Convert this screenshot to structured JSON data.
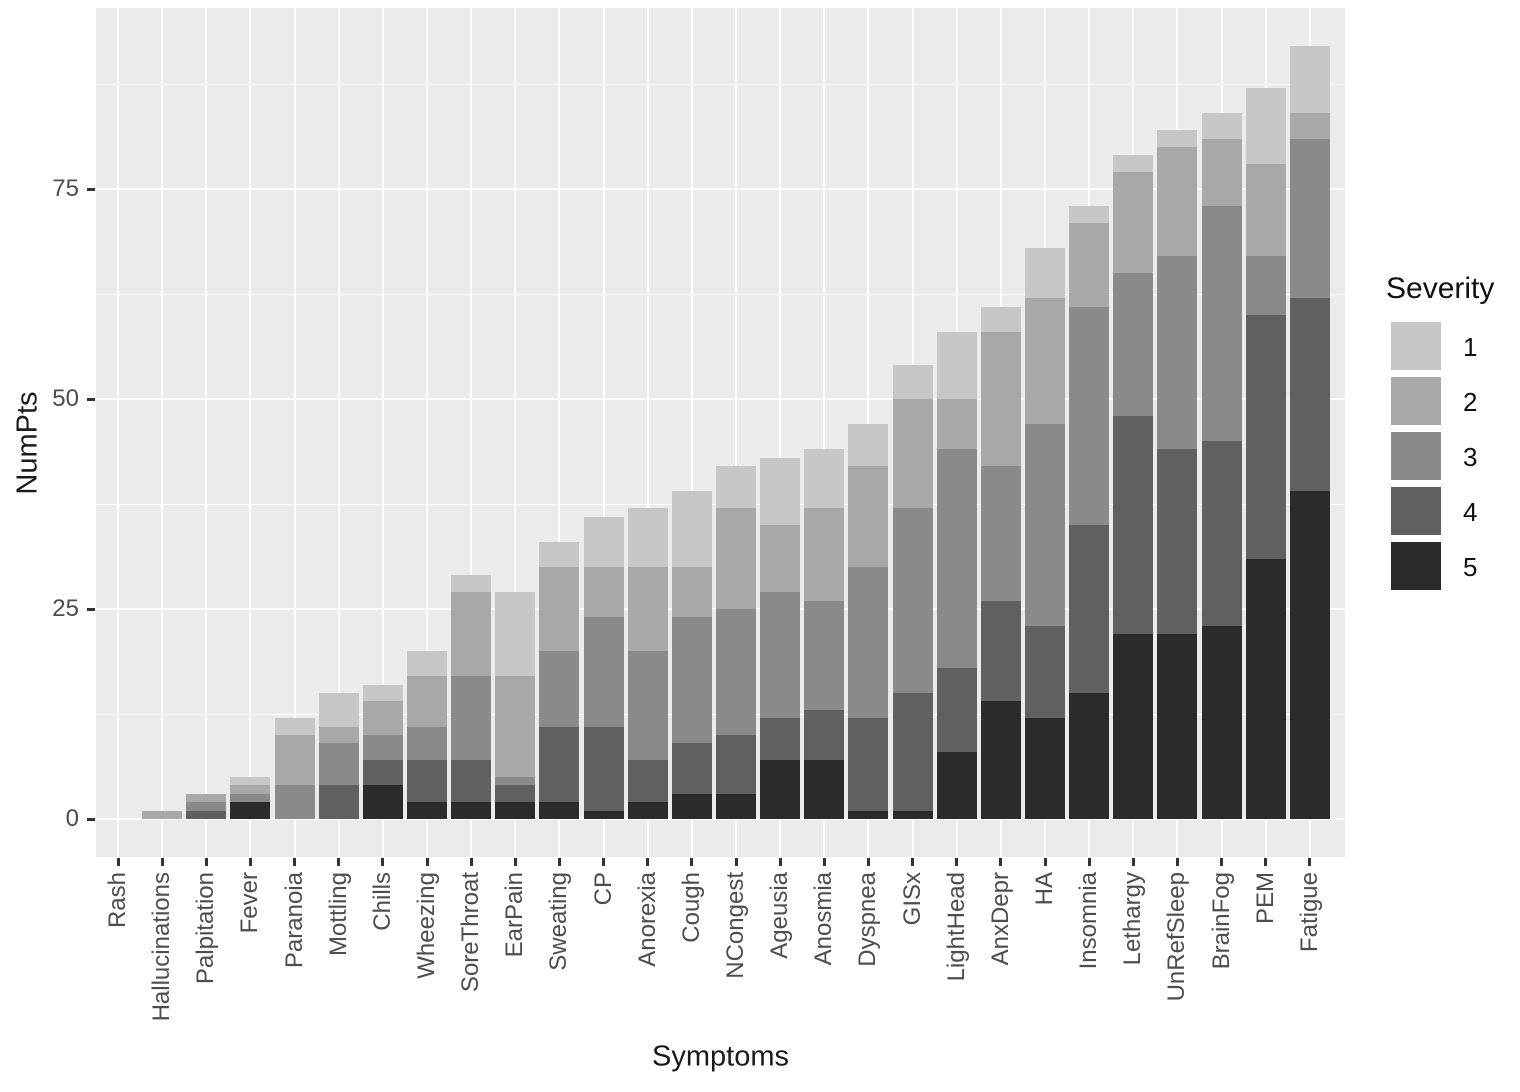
{
  "figure": {
    "y_axis": {
      "title": "NumPts",
      "tick_labels": [
        "0",
        "25",
        "50",
        "75"
      ]
    },
    "x_axis": {
      "title": "Symptoms"
    },
    "legend": {
      "title": "Severity",
      "labels": [
        "1",
        "2",
        "3",
        "4",
        "5"
      ]
    },
    "colors": {
      "severity_fills": [
        "#c6c6c6",
        "#a8a8a8",
        "#8a8a8a",
        "#606060",
        "#2b2b2b"
      ],
      "panel_background": "#ebebeb",
      "gridline": "#ffffff",
      "tick_mark": "#333333",
      "tick_text": "#4d4d4d",
      "title_text": "#1a1a1a"
    }
  },
  "chart_data": {
    "type": "bar",
    "stacked": true,
    "title": "",
    "xlabel": "Symptoms",
    "ylabel": "NumPts",
    "ylim": [
      0,
      96
    ],
    "yticks": [
      0,
      25,
      50,
      75
    ],
    "grid": true,
    "legend_position": "right",
    "legend_title": "Severity",
    "categories": [
      "Rash",
      "Hallucinations",
      "Palpitation",
      "Fever",
      "Paranoia",
      "Mottling",
      "Chills",
      "Wheezing",
      "SoreThroat",
      "EarPain",
      "Sweating",
      "CP",
      "Anorexia",
      "Cough",
      "NCongest",
      "Ageusia",
      "Anosmia",
      "Dyspnea",
      "GISx",
      "LightHead",
      "AnxDepr",
      "HA",
      "Insomnia",
      "Lethargy",
      "UnRefSleep",
      "BrainFog",
      "PEM",
      "Fatigue"
    ],
    "series": [
      {
        "name": "1",
        "values": [
          0,
          0,
          0,
          1,
          2,
          4,
          2,
          3,
          2,
          10,
          3,
          6,
          7,
          9,
          5,
          8,
          7,
          5,
          4,
          8,
          3,
          6,
          2,
          2,
          2,
          3,
          9,
          8
        ]
      },
      {
        "name": "2",
        "values": [
          0,
          1,
          1,
          1,
          6,
          2,
          4,
          6,
          10,
          12,
          10,
          6,
          10,
          6,
          12,
          8,
          11,
          12,
          13,
          6,
          16,
          15,
          10,
          12,
          13,
          8,
          11,
          3
        ]
      },
      {
        "name": "3",
        "values": [
          0,
          0,
          1,
          1,
          4,
          5,
          3,
          4,
          10,
          1,
          9,
          13,
          13,
          15,
          15,
          15,
          13,
          18,
          22,
          26,
          16,
          24,
          26,
          17,
          23,
          28,
          7,
          19
        ]
      },
      {
        "name": "4",
        "values": [
          0,
          0,
          1,
          0,
          0,
          4,
          3,
          5,
          5,
          2,
          9,
          10,
          5,
          6,
          7,
          5,
          6,
          11,
          14,
          10,
          12,
          11,
          20,
          26,
          22,
          22,
          29,
          23
        ]
      },
      {
        "name": "5",
        "values": [
          0,
          0,
          0,
          2,
          0,
          0,
          4,
          2,
          2,
          2,
          2,
          1,
          2,
          3,
          3,
          7,
          7,
          1,
          1,
          8,
          14,
          12,
          15,
          22,
          22,
          23,
          31,
          39
        ]
      }
    ],
    "totals": [
      0,
      1,
      3,
      5,
      12,
      15,
      16,
      20,
      29,
      27,
      33,
      36,
      37,
      39,
      42,
      43,
      44,
      47,
      54,
      58,
      61,
      68,
      73,
      79,
      82,
      84,
      87,
      92
    ]
  }
}
